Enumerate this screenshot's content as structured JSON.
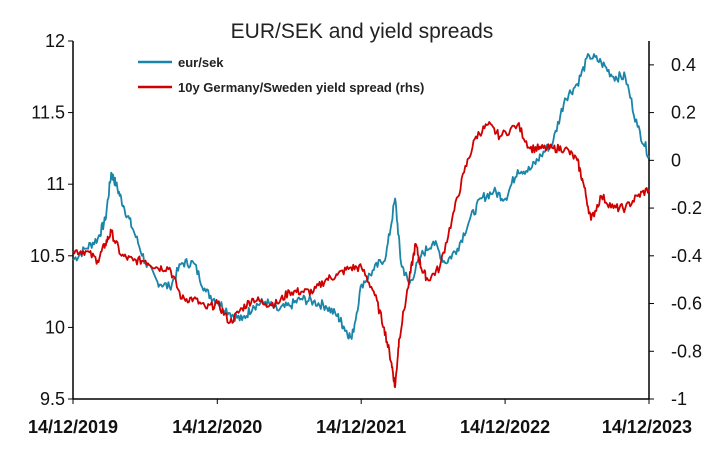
{
  "chart_data": {
    "type": "line",
    "title": "EUR/SEK and yield spreads",
    "xlabel": "",
    "ylabel": "",
    "x_ticks": [
      "14/12/2019",
      "14/12/2020",
      "14/12/2021",
      "14/12/2022",
      "14/12/2023"
    ],
    "y_left": {
      "range": [
        9.5,
        12
      ],
      "ticks": [
        "9.5",
        "10",
        "10.5",
        "11",
        "11.5",
        "12"
      ]
    },
    "y_right": {
      "range": [
        -1,
        0.5
      ],
      "ticks": [
        "-1",
        "-0.8",
        "-0.6",
        "-0.4",
        "-0.2",
        "0",
        "0.2",
        "0.4"
      ]
    },
    "grid": false,
    "legend_position": "top",
    "series": [
      {
        "name": "eur/sek",
        "axis": "left",
        "color": "#1a85a8",
        "points": [
          [
            "2019-12-14",
            10.47
          ],
          [
            "2020-01-15",
            10.55
          ],
          [
            "2020-02-15",
            10.62
          ],
          [
            "2020-03-05",
            10.75
          ],
          [
            "2020-03-20",
            11.08
          ],
          [
            "2020-04-01",
            11.0
          ],
          [
            "2020-04-20",
            10.85
          ],
          [
            "2020-05-15",
            10.68
          ],
          [
            "2020-06-15",
            10.45
          ],
          [
            "2020-07-15",
            10.32
          ],
          [
            "2020-08-15",
            10.28
          ],
          [
            "2020-09-15",
            10.45
          ],
          [
            "2020-10-15",
            10.45
          ],
          [
            "2020-11-15",
            10.25
          ],
          [
            "2020-12-15",
            10.18
          ],
          [
            "2021-01-15",
            10.1
          ],
          [
            "2021-02-15",
            10.05
          ],
          [
            "2021-03-15",
            10.15
          ],
          [
            "2021-04-15",
            10.18
          ],
          [
            "2021-05-15",
            10.12
          ],
          [
            "2021-06-15",
            10.15
          ],
          [
            "2021-07-15",
            10.2
          ],
          [
            "2021-08-15",
            10.18
          ],
          [
            "2021-09-15",
            10.15
          ],
          [
            "2021-10-15",
            10.08
          ],
          [
            "2021-11-01",
            10.0
          ],
          [
            "2021-11-20",
            9.92
          ],
          [
            "2021-12-15",
            10.3
          ],
          [
            "2022-01-15",
            10.4
          ],
          [
            "2022-02-15",
            10.5
          ],
          [
            "2022-03-10",
            10.9
          ],
          [
            "2022-03-25",
            10.45
          ],
          [
            "2022-04-15",
            10.3
          ],
          [
            "2022-05-15",
            10.5
          ],
          [
            "2022-06-15",
            10.6
          ],
          [
            "2022-07-15",
            10.45
          ],
          [
            "2022-08-15",
            10.55
          ],
          [
            "2022-09-15",
            10.75
          ],
          [
            "2022-10-15",
            10.9
          ],
          [
            "2022-11-15",
            10.95
          ],
          [
            "2022-12-15",
            10.9
          ],
          [
            "2023-01-15",
            11.1
          ],
          [
            "2023-02-15",
            11.1
          ],
          [
            "2023-03-15",
            11.2
          ],
          [
            "2023-04-15",
            11.3
          ],
          [
            "2023-05-15",
            11.6
          ],
          [
            "2023-06-15",
            11.7
          ],
          [
            "2023-07-15",
            11.9
          ],
          [
            "2023-08-15",
            11.85
          ],
          [
            "2023-09-15",
            11.75
          ],
          [
            "2023-10-15",
            11.75
          ],
          [
            "2023-11-15",
            11.4
          ],
          [
            "2023-12-14",
            11.2
          ]
        ]
      },
      {
        "name": "10y Germany/Sweden yield spread (rhs)",
        "axis": "right",
        "color": "#d00000",
        "points": [
          [
            "2019-12-14",
            -0.38
          ],
          [
            "2020-01-15",
            -0.38
          ],
          [
            "2020-02-15",
            -0.42
          ],
          [
            "2020-03-05",
            -0.35
          ],
          [
            "2020-03-20",
            -0.3
          ],
          [
            "2020-04-15",
            -0.4
          ],
          [
            "2020-05-15",
            -0.42
          ],
          [
            "2020-06-15",
            -0.42
          ],
          [
            "2020-07-15",
            -0.45
          ],
          [
            "2020-08-15",
            -0.45
          ],
          [
            "2020-09-15",
            -0.58
          ],
          [
            "2020-10-15",
            -0.58
          ],
          [
            "2020-11-15",
            -0.62
          ],
          [
            "2020-12-15",
            -0.6
          ],
          [
            "2021-01-15",
            -0.68
          ],
          [
            "2021-02-15",
            -0.62
          ],
          [
            "2021-03-15",
            -0.58
          ],
          [
            "2021-04-15",
            -0.6
          ],
          [
            "2021-05-15",
            -0.6
          ],
          [
            "2021-06-15",
            -0.55
          ],
          [
            "2021-07-15",
            -0.55
          ],
          [
            "2021-08-15",
            -0.55
          ],
          [
            "2021-09-15",
            -0.5
          ],
          [
            "2021-10-15",
            -0.48
          ],
          [
            "2021-11-15",
            -0.45
          ],
          [
            "2021-12-15",
            -0.45
          ],
          [
            "2022-01-15",
            -0.55
          ],
          [
            "2022-02-10",
            -0.7
          ],
          [
            "2022-03-01",
            -0.85
          ],
          [
            "2022-03-10",
            -0.95
          ],
          [
            "2022-03-20",
            -0.75
          ],
          [
            "2022-04-15",
            -0.5
          ],
          [
            "2022-05-01",
            -0.35
          ],
          [
            "2022-05-15",
            -0.45
          ],
          [
            "2022-06-01",
            -0.5
          ],
          [
            "2022-07-01",
            -0.45
          ],
          [
            "2022-08-01",
            -0.25
          ],
          [
            "2022-09-01",
            -0.05
          ],
          [
            "2022-10-01",
            0.1
          ],
          [
            "2022-11-01",
            0.15
          ],
          [
            "2022-12-01",
            0.1
          ],
          [
            "2023-01-15",
            0.15
          ],
          [
            "2023-02-15",
            0.05
          ],
          [
            "2023-03-15",
            0.05
          ],
          [
            "2023-04-15",
            0.05
          ],
          [
            "2023-05-15",
            0.05
          ],
          [
            "2023-06-15",
            0.0
          ],
          [
            "2023-07-01",
            -0.1
          ],
          [
            "2023-07-20",
            -0.25
          ],
          [
            "2023-08-15",
            -0.15
          ],
          [
            "2023-09-15",
            -0.2
          ],
          [
            "2023-10-15",
            -0.2
          ],
          [
            "2023-11-15",
            -0.15
          ],
          [
            "2023-12-14",
            -0.12
          ]
        ]
      }
    ]
  }
}
